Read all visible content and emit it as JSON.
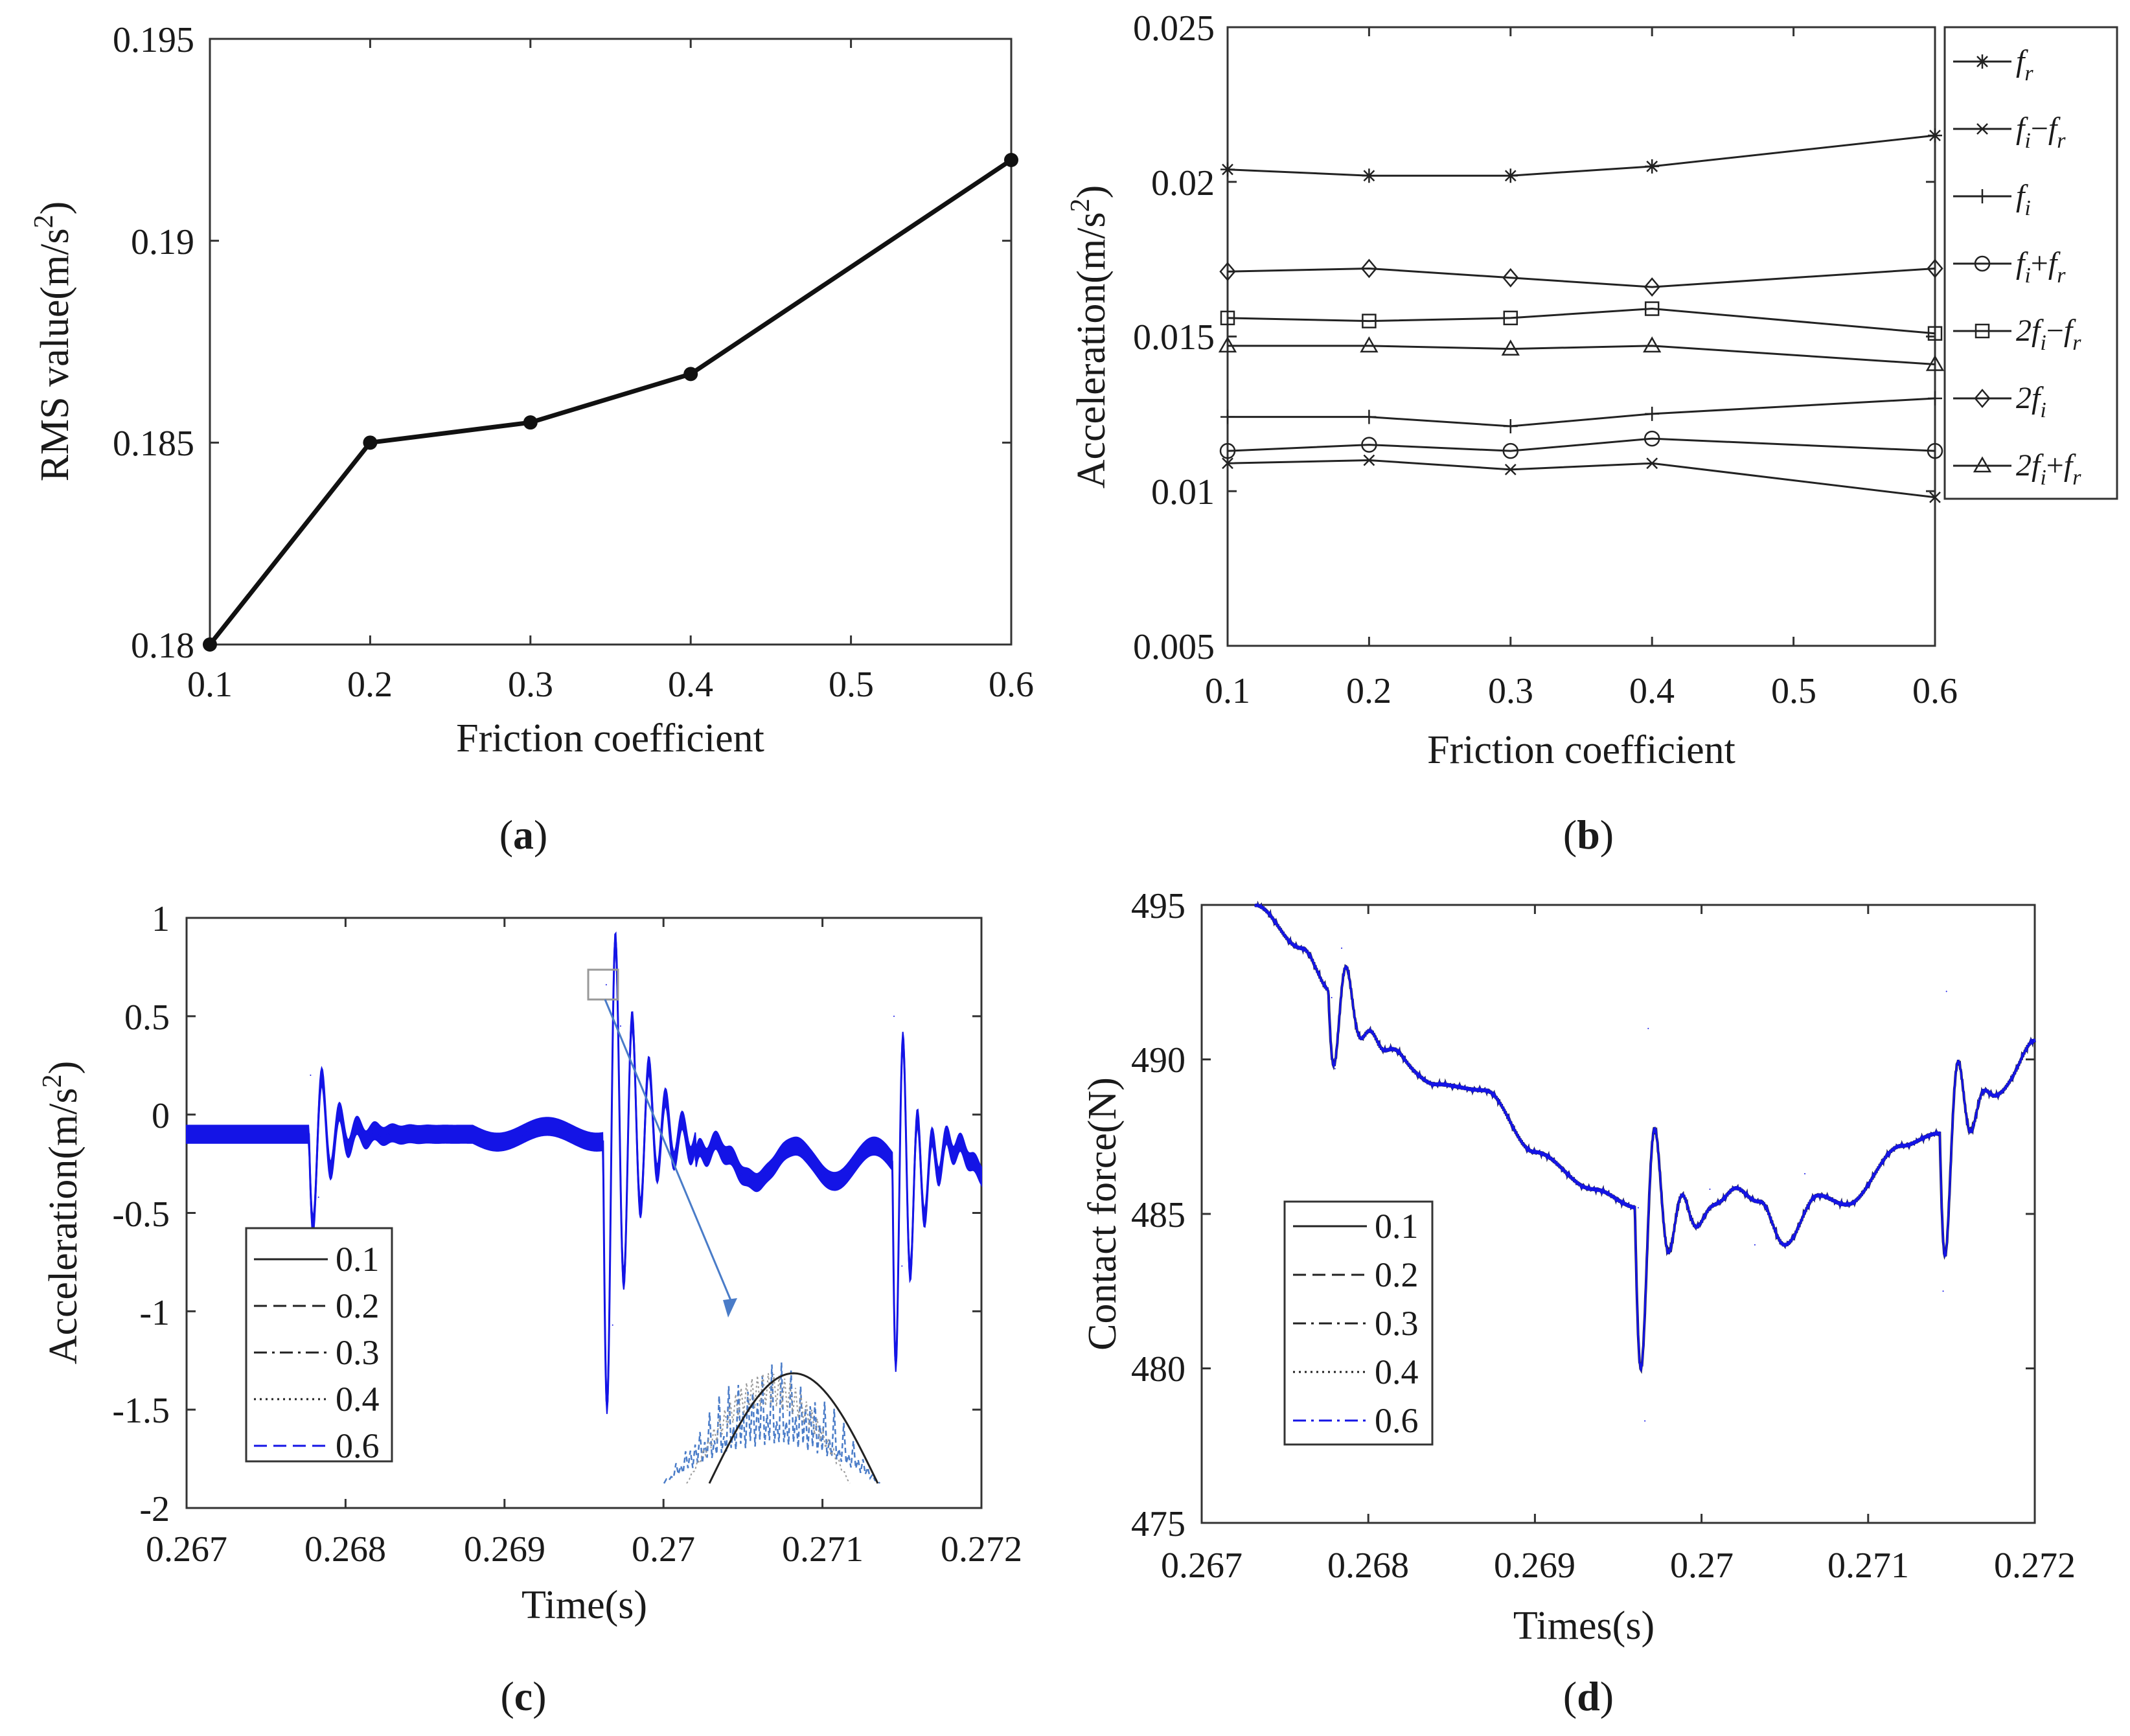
{
  "chart_data": [
    {
      "panel": "a",
      "type": "line",
      "caption_letter": "a",
      "xlabel": "Friction coefficient",
      "ylabel": "RMS value(m/s",
      "ylabel_sup": "2",
      "ylabel_close": ")",
      "x": [
        0.1,
        0.2,
        0.3,
        0.4,
        0.6
      ],
      "values": [
        0.18,
        0.185,
        0.1855,
        0.1867,
        0.192
      ],
      "xlim": [
        0.1,
        0.6
      ],
      "ylim": [
        0.18,
        0.195
      ],
      "xticks": [
        "0.1",
        "0.2",
        "0.3",
        "0.4",
        "0.5",
        "0.6"
      ],
      "yticks": [
        "0.18",
        "0.185",
        "0.19",
        "0.195"
      ]
    },
    {
      "panel": "b",
      "type": "line",
      "caption_letter": "b",
      "xlabel": "Friction coefficient",
      "ylabel": "Acceleration(m/s",
      "ylabel_sup": "2",
      "ylabel_close": ")",
      "x": [
        0.1,
        0.2,
        0.3,
        0.4,
        0.6
      ],
      "xlim": [
        0.1,
        0.6
      ],
      "ylim": [
        0.005,
        0.025
      ],
      "xticks": [
        "0.1",
        "0.2",
        "0.3",
        "0.4",
        "0.5",
        "0.6"
      ],
      "yticks": [
        "0.005",
        "0.01",
        "0.015",
        "0.02",
        "0.025"
      ],
      "series": [
        {
          "name": "f_r",
          "main": "f",
          "sub": "r",
          "marker": "star",
          "values": [
            0.0204,
            0.0202,
            0.0202,
            0.0205,
            0.0215
          ]
        },
        {
          "name": "f_i-f_r",
          "main": "f",
          "sub": "i",
          "op": "−",
          "main2": "f",
          "sub2": "r",
          "marker": "x",
          "values": [
            0.0109,
            0.011,
            0.0107,
            0.0109,
            0.0098
          ]
        },
        {
          "name": "f_i",
          "main": "f",
          "sub": "i",
          "marker": "plus",
          "values": [
            0.0124,
            0.0124,
            0.0121,
            0.0125,
            0.013
          ]
        },
        {
          "name": "f_i+f_r",
          "main": "f",
          "sub": "i",
          "op": "+",
          "main2": "f",
          "sub2": "r",
          "marker": "circle",
          "values": [
            0.0113,
            0.0115,
            0.0113,
            0.0117,
            0.0113
          ]
        },
        {
          "name": "2f_i-f_r",
          "main": "2f",
          "sub": "i",
          "op": "−",
          "main2": "f",
          "sub2": "r",
          "marker": "square",
          "values": [
            0.0156,
            0.0155,
            0.0156,
            0.0159,
            0.0151
          ]
        },
        {
          "name": "2f_i",
          "main": "2f",
          "sub": "i",
          "marker": "diamond",
          "values": [
            0.0171,
            0.0172,
            0.0169,
            0.0166,
            0.0172
          ]
        },
        {
          "name": "2f_i+f_r",
          "main": "2f",
          "sub": "i",
          "op": "+",
          "main2": "f",
          "sub2": "r",
          "marker": "triangle",
          "values": [
            0.0147,
            0.0147,
            0.0146,
            0.0147,
            0.0141
          ]
        }
      ]
    },
    {
      "panel": "c",
      "type": "line",
      "caption_letter": "c",
      "xlabel": "Time(s)",
      "ylabel": "Acceleration(m/s",
      "ylabel_sup": "2",
      "ylabel_close": ")",
      "xlim": [
        0.267,
        0.272
      ],
      "ylim": [
        -2,
        1
      ],
      "xticks": [
        "0.267",
        "0.268",
        "0.269",
        "0.27",
        "0.271",
        "0.272"
      ],
      "yticks": [
        "-2",
        "-1.5",
        "-1",
        "-0.5",
        "0",
        "0.5",
        "1"
      ],
      "legend": [
        "0.1",
        "0.2",
        "0.3",
        "0.4",
        "0.6"
      ],
      "line_color": "#1414e6",
      "zoom_color": "#4a7cc8",
      "keypoints": [
        [
          0.26778,
          0.2
        ],
        [
          0.26783,
          -0.42
        ],
        [
          0.26964,
          0.66
        ],
        [
          0.26968,
          -1.07
        ],
        [
          0.26973,
          0.45
        ],
        [
          0.27145,
          0.5
        ],
        [
          0.2715,
          -0.77
        ]
      ]
    },
    {
      "panel": "d",
      "type": "line",
      "caption_letter": "d",
      "xlabel": "Times(s)",
      "ylabel": "Contact force(N)",
      "xlim": [
        0.267,
        0.272
      ],
      "ylim": [
        475,
        495
      ],
      "xticks": [
        "0.267",
        "0.268",
        "0.269",
        "0.27",
        "0.271",
        "0.272"
      ],
      "yticks": [
        "475",
        "480",
        "485",
        "490",
        "495"
      ],
      "legend": [
        "0.1",
        "0.2",
        "0.3",
        "0.4",
        "0.6"
      ],
      "line_color": "#1414e6",
      "keypoints": [
        [
          0.26732,
          495
        ],
        [
          0.26778,
          492
        ],
        [
          0.2678,
          489.7
        ],
        [
          0.26784,
          493.6
        ],
        [
          0.26962,
          485.2
        ],
        [
          0.26966,
          478.3
        ],
        [
          0.26968,
          491
        ],
        [
          0.27005,
          485.8
        ],
        [
          0.27032,
          484
        ],
        [
          0.27062,
          486.3
        ],
        [
          0.27087,
          485.3
        ],
        [
          0.27142,
          487.6
        ],
        [
          0.27145,
          482.5
        ],
        [
          0.27147,
          492.2
        ],
        [
          0.272,
          490.6
        ]
      ]
    }
  ]
}
